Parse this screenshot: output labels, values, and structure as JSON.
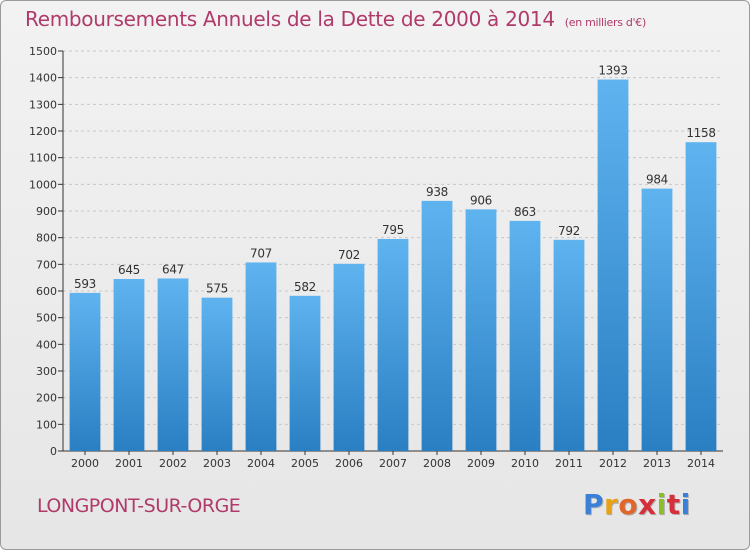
{
  "header": {
    "title": "Remboursements Annuels de la Dette de 2000 à 2014",
    "subtitle": "(en milliers d'€)"
  },
  "footer": {
    "town": "LONGPONT-SUR-ORGE",
    "logo_text": "Proxiti"
  },
  "colors": {
    "title": "#b03a6a",
    "bar_top": "#5fb3ef",
    "bar_bottom": "#2a7fc3",
    "logo_letters": [
      "#3a7fd8",
      "#e8a21a",
      "#e0662a",
      "#d62f3c",
      "#8bbf2a",
      "#d62f3c",
      "#3a7fd8"
    ]
  },
  "chart_data": {
    "type": "bar",
    "categories": [
      "2000",
      "2001",
      "2002",
      "2003",
      "2004",
      "2005",
      "2006",
      "2007",
      "2008",
      "2009",
      "2010",
      "2011",
      "2012",
      "2013",
      "2014"
    ],
    "values": [
      593,
      645,
      647,
      575,
      707,
      582,
      702,
      795,
      938,
      906,
      863,
      792,
      1393,
      984,
      1158
    ],
    "ylim": [
      0,
      1500
    ],
    "yticks": [
      0,
      100,
      200,
      300,
      400,
      500,
      600,
      700,
      800,
      900,
      1000,
      1100,
      1200,
      1300,
      1400,
      1500
    ],
    "grid": true,
    "xlabel": "",
    "ylabel": ""
  }
}
